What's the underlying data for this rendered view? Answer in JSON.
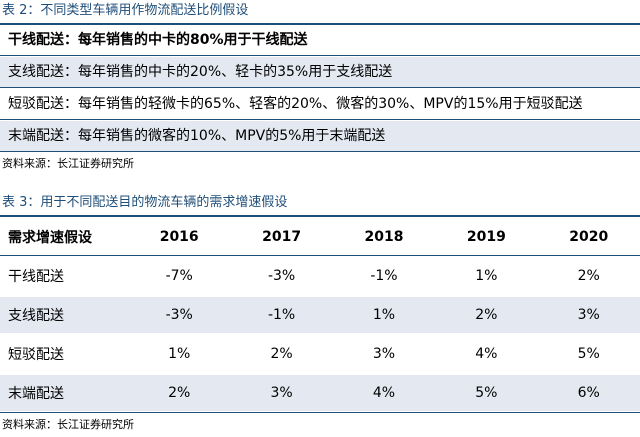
{
  "table2": {
    "caption": "表 2：不同类型车辆用作物流配送比例假设",
    "rows": [
      "干线配送：每年销售的中卡的80%用于干线配送",
      "支线配送：每年销售的中卡的20%、轻卡的35%用于支线配送",
      "短驳配送：每年销售的轻微卡的65%、轻客的20%、微客的30%、MPV的15%用于短驳配送",
      "末端配送：每年销售的微客的10%、MPV的5%用于末端配送"
    ],
    "source": "资料来源：长江证券研究所"
  },
  "table3": {
    "caption": "表 3：用于不同配送目的物流车辆的需求增速假设",
    "header": [
      "需求增速假设",
      "2016",
      "2017",
      "2018",
      "2019",
      "2020"
    ],
    "rows": [
      [
        "干线配送",
        "-7%",
        "-3%",
        "-1%",
        "1%",
        "2%"
      ],
      [
        "支线配送",
        "-3%",
        "-1%",
        "1%",
        "2%",
        "3%"
      ],
      [
        "短驳配送",
        "1%",
        "2%",
        "3%",
        "4%",
        "5%"
      ],
      [
        "末端配送",
        "2%",
        "3%",
        "4%",
        "5%",
        "6%"
      ]
    ],
    "source": "资料来源：长江证券研究所"
  }
}
